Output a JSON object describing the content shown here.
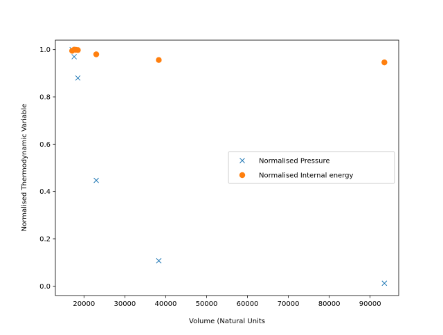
{
  "chart_data": {
    "type": "scatter",
    "xlabel": "Volume (Natural Units",
    "ylabel": "Normalised Thermodynamic Variable",
    "xlim": [
      13000,
      97000
    ],
    "ylim": [
      -0.04,
      1.04
    ],
    "grid": false,
    "legend_position": "center-right",
    "x_ticks": [
      20000,
      30000,
      40000,
      50000,
      60000,
      70000,
      80000,
      90000
    ],
    "y_ticks": [
      0.0,
      0.2,
      0.4,
      0.6,
      0.8,
      1.0
    ],
    "x_tick_labels": [
      "20000",
      "30000",
      "40000",
      "50000",
      "60000",
      "70000",
      "80000",
      "90000"
    ],
    "y_tick_labels": [
      "0.0",
      "0.2",
      "0.4",
      "0.6",
      "0.8",
      "1.0"
    ],
    "series": [
      {
        "name": "Normalised Pressure",
        "marker": "x",
        "color": "#1f77b4",
        "x": [
          17100,
          17600,
          18500,
          23000,
          38300,
          93500
        ],
        "y": [
          1.0,
          0.97,
          0.88,
          0.447,
          0.107,
          0.012
        ]
      },
      {
        "name": "Normalised Internal energy",
        "marker": "circle",
        "color": "#ff7f0e",
        "x": [
          17100,
          17600,
          18000,
          18500,
          23000,
          38300,
          93500
        ],
        "y": [
          0.995,
          1.0,
          0.999,
          0.998,
          0.98,
          0.956,
          0.946
        ]
      }
    ]
  }
}
